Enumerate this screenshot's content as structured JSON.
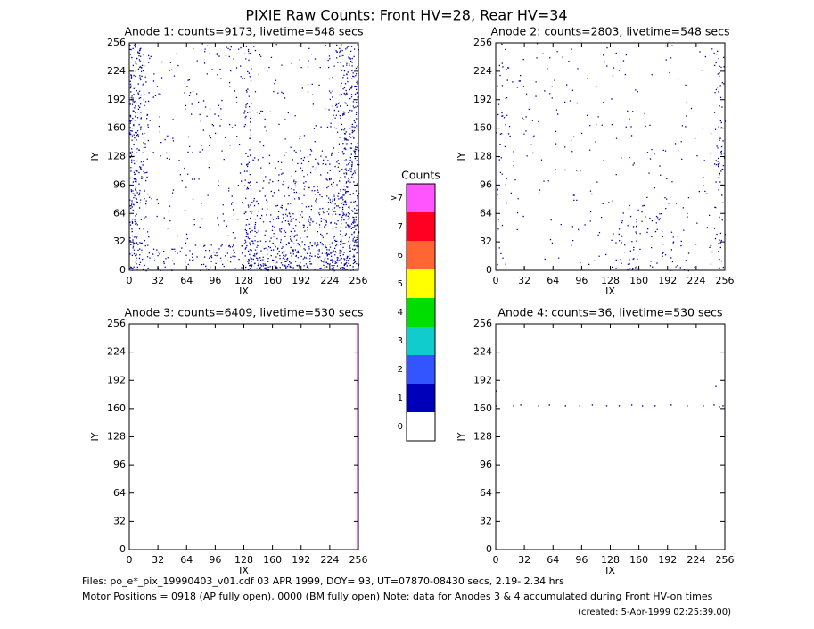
{
  "title": "PIXIE Raw Counts:  Front HV=28, Rear HV=34",
  "chart_data": [
    {
      "type": "pixel-map",
      "title": "Anode 1: counts=9173, livetime=548 secs",
      "xlabel": "IX",
      "ylabel": "IY",
      "xlim": [
        0,
        256
      ],
      "ylim": [
        0,
        256
      ],
      "xticks": [
        0,
        32,
        64,
        96,
        128,
        160,
        192,
        224,
        256
      ],
      "yticks": [
        0,
        32,
        64,
        96,
        128,
        160,
        192,
        224,
        256
      ],
      "color": "#0000aa"
    },
    {
      "type": "pixel-map",
      "title": "Anode 2: counts=2803, livetime=548 secs",
      "xlabel": "IX",
      "ylabel": "IY",
      "xlim": [
        0,
        256
      ],
      "ylim": [
        0,
        256
      ],
      "xticks": [
        0,
        32,
        64,
        96,
        128,
        160,
        192,
        224,
        256
      ],
      "yticks": [
        0,
        32,
        64,
        96,
        128,
        160,
        192,
        224,
        256
      ],
      "color": "#0000aa"
    },
    {
      "type": "line",
      "title": "Anode 3: counts=6409, livetime=530 secs",
      "xlabel": "IX",
      "ylabel": "IY",
      "xlim": [
        0,
        256
      ],
      "ylim": [
        0,
        256
      ],
      "xticks": [
        0,
        32,
        64,
        96,
        128,
        160,
        192,
        224,
        256
      ],
      "yticks": [
        0,
        32,
        64,
        96,
        128,
        160,
        192,
        224,
        256
      ],
      "color": "#ff66ff",
      "x": [
        255,
        255
      ],
      "y": [
        0,
        256
      ]
    },
    {
      "type": "scatter",
      "title": "Anode 4: counts=36, livetime=530 secs",
      "xlabel": "IX",
      "ylabel": "IY",
      "xlim": [
        0,
        256
      ],
      "ylim": [
        0,
        256
      ],
      "xticks": [
        0,
        32,
        64,
        96,
        128,
        160,
        192,
        224,
        256
      ],
      "yticks": [
        0,
        32,
        64,
        96,
        128,
        160,
        192,
        224,
        256
      ],
      "color": "#0000aa",
      "x": [
        1,
        20,
        28,
        48,
        60,
        78,
        94,
        108,
        124,
        138,
        152,
        164,
        178,
        196,
        214,
        232,
        244,
        250,
        254,
        1,
        246
      ],
      "y": [
        163,
        163,
        164,
        163,
        164,
        163,
        163,
        164,
        163,
        163,
        164,
        163,
        163,
        164,
        163,
        163,
        164,
        162,
        163,
        180,
        185
      ]
    }
  ],
  "colorbar": {
    "title": "Counts",
    "levels": [
      {
        "label": ">7",
        "color": "#ff55ff"
      },
      {
        "label": "7",
        "color": "#ff0022"
      },
      {
        "label": "6",
        "color": "#ff6633"
      },
      {
        "label": "5",
        "color": "#ffff00"
      },
      {
        "label": "4",
        "color": "#00dd00"
      },
      {
        "label": "3",
        "color": "#11cccc"
      },
      {
        "label": "2",
        "color": "#3355ff"
      },
      {
        "label": "1",
        "color": "#0000bb"
      },
      {
        "label": "0",
        "color": "#ffffff"
      }
    ]
  },
  "footer": [
    "Files: po_e*_pix_19990403_v01.cdf   03 APR 1999, DOY= 93, UT=07870-08430 secs,  2.19- 2.34 hrs",
    "Motor Positions = 0918 (AP fully open), 0000 (BM fully open)   Note: data for Anodes 3 & 4 accumulated during Front HV-on times",
    "(created:  5-Apr-1999 02:25:39.00)"
  ]
}
